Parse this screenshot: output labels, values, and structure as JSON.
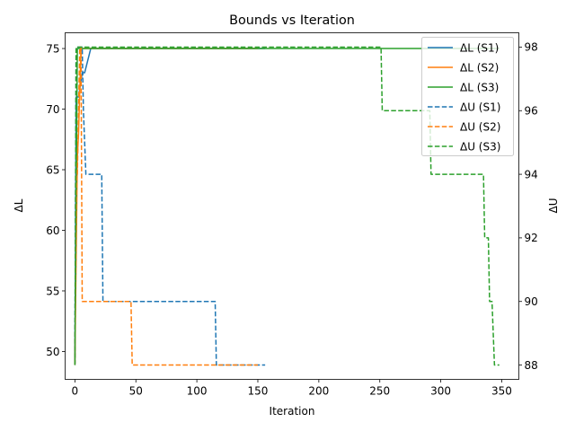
{
  "chart_data": {
    "type": "line",
    "title": "Bounds vs Iteration",
    "xlabel": "Iteration",
    "ylabel_left": "ΔL",
    "ylabel_right": "ΔU",
    "xlim": [
      -8,
      364
    ],
    "ylim_left": [
      47.7,
      76.3
    ],
    "ylim_right": [
      87.55,
      98.45
    ],
    "x_ticks": [
      0,
      50,
      100,
      150,
      200,
      250,
      300,
      350
    ],
    "y_left_ticks": [
      50,
      55,
      60,
      65,
      70,
      75
    ],
    "y_right_ticks": [
      88,
      90,
      92,
      94,
      96,
      98
    ],
    "grid": false,
    "legend_placement": "top-right",
    "series": [
      {
        "name": "ΔL (S1)",
        "axis": "left",
        "style": "solid",
        "color": "#1f77b4",
        "x": [
          0,
          1,
          3,
          6,
          8,
          13,
          156
        ],
        "y": [
          49,
          71,
          71,
          73,
          73,
          75,
          75
        ]
      },
      {
        "name": "ΔL (S2)",
        "axis": "left",
        "style": "solid",
        "color": "#ff7f0e",
        "x": [
          0,
          2,
          3,
          5,
          150
        ],
        "y": [
          49,
          66,
          68,
          75,
          75
        ]
      },
      {
        "name": "ΔL (S3)",
        "axis": "left",
        "style": "solid",
        "color": "#2ca02c",
        "x": [
          0,
          2,
          348
        ],
        "y": [
          49,
          75,
          75
        ]
      },
      {
        "name": "ΔU (S1)",
        "axis": "right",
        "style": "dashed",
        "color": "#1f77b4",
        "x": [
          0,
          1,
          6,
          7,
          9,
          22,
          23,
          115,
          116,
          156
        ],
        "y": [
          88,
          98,
          98,
          96,
          94,
          94,
          90,
          90,
          88,
          88
        ]
      },
      {
        "name": "ΔU (S2)",
        "axis": "right",
        "style": "dashed",
        "color": "#ff7f0e",
        "x": [
          0,
          1,
          2,
          4,
          5,
          6,
          46,
          47,
          150
        ],
        "y": [
          88,
          94,
          94,
          98,
          98,
          90,
          90,
          88,
          88
        ]
      },
      {
        "name": "ΔU (S3)",
        "axis": "right",
        "style": "dashed",
        "color": "#2ca02c",
        "x": [
          0,
          1,
          251,
          252,
          291,
          292,
          335,
          336,
          339,
          340,
          342,
          344,
          348
        ],
        "y": [
          88,
          98,
          98,
          96,
          96,
          94,
          94,
          92,
          92,
          90,
          90,
          88,
          88
        ]
      }
    ]
  }
}
